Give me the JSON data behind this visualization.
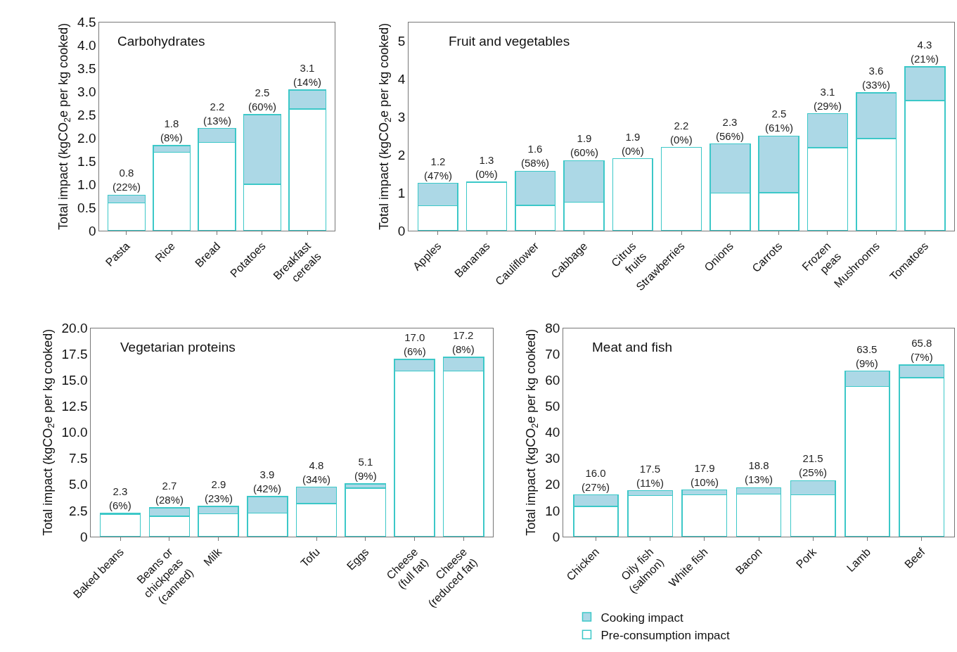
{
  "chart_data": [
    {
      "type": "bar",
      "title": "Carbohydrates",
      "ylabel": "Total impact (kgCO$_{2}$e per kg cooked)",
      "stacked": true,
      "categories": [
        "Pasta",
        "Rice",
        "Bread",
        "Potatoes",
        "Breakfast\ncereals"
      ],
      "series": [
        {
          "color": "#ffffff",
          "values": [
            0.6,
            1.69,
            1.91,
            1.0,
            2.63
          ]
        },
        {
          "color": "#acd8e6",
          "values": [
            0.17,
            0.15,
            0.3,
            1.51,
            0.41
          ]
        }
      ],
      "totals": [
        "0.8\n(22%)",
        "1.8\n(8%)",
        "2.2\n(13%)",
        "2.5\n(60%)",
        "3.1\n(14%)"
      ],
      "ylim": [
        0,
        4.5
      ],
      "yticks": [
        0,
        0.5,
        {
          "value": 1,
          "label": "1.0"
        },
        1.5,
        {
          "value": 2,
          "label": "2.0"
        },
        2.5,
        {
          "value": 3,
          "label": "3.0"
        },
        3.5,
        {
          "value": 4,
          "label": "4.0"
        },
        4.5
      ]
    },
    {
      "type": "bar",
      "title": "Fruit and vegetables",
      "ylabel": "Total impact (kgCO$_{2}$e per kg cooked)",
      "stacked": true,
      "categories": [
        "Apples",
        "Bananas",
        "Cauliflower",
        "Cabbage",
        "Citrus\nfruits",
        "Strawberries",
        "Onions",
        "Carrots",
        "Frozen\npeas",
        "Mushrooms",
        "Tomatoes"
      ],
      "series": [
        {
          "color": "#ffffff",
          "values": [
            0.66,
            1.28,
            0.67,
            0.75,
            1.9,
            2.2,
            0.99,
            1.0,
            2.19,
            2.43,
            3.43
          ]
        },
        {
          "color": "#acd8e6",
          "values": [
            0.59,
            null,
            0.9,
            1.1,
            null,
            null,
            1.3,
            1.5,
            0.9,
            1.21,
            0.9
          ]
        }
      ],
      "totals": [
        "1.2\n(47%)",
        "1.3\n(0%)",
        "1.6\n(58%)",
        "1.9\n(60%)",
        "1.9\n(0%)",
        "2.2\n(0%)",
        "2.3\n(56%)",
        "2.5\n(61%)",
        "3.1\n(29%)",
        "3.6\n(33%)",
        "4.3\n(21%)"
      ],
      "ylim": [
        0,
        5.5
      ],
      "yticks": [
        0,
        1,
        2,
        3,
        4,
        5
      ]
    },
    {
      "type": "bar",
      "title": "Vegetarian proteins",
      "ylabel": "Total impact (kgCO$_{2}$e per kg cooked)",
      "stacked": true,
      "categories": [
        "Baked beans",
        "Beans or\nchickpeas\n(canned)",
        "Milk",
        null,
        "Tofu",
        "Eggs",
        "Cheese\n(full fat)",
        "Cheese\n(reduced fat)"
      ],
      "series": [
        {
          "color": "#ffffff",
          "values": [
            2.15,
            1.95,
            2.2,
            2.25,
            3.15,
            4.65,
            15.9,
            15.9
          ]
        },
        {
          "color": "#acd8e6",
          "values": [
            0.1,
            0.8,
            0.7,
            1.6,
            1.6,
            0.4,
            1.1,
            1.3
          ]
        }
      ],
      "totals": [
        "2.3\n(6%)",
        "2.7\n(28%)",
        "2.9\n(23%)",
        "3.9\n(42%)",
        "4.8\n(34%)",
        "5.1\n(9%)",
        "17.0\n(6%)",
        "17.2\n(8%)"
      ],
      "ylim": [
        0,
        20
      ],
      "yticks": [
        0,
        2.5,
        {
          "value": 5,
          "label": "5.0"
        },
        7.5,
        {
          "value": 10,
          "label": "10.0"
        },
        12.5,
        {
          "value": 15,
          "label": "15.0"
        },
        17.5,
        {
          "value": 20,
          "label": "20.0"
        }
      ]
    },
    {
      "type": "bar",
      "title": "Meat and fish",
      "ylabel": "Total impact (kgCO$_{2}$e per kg cooked)",
      "stacked": true,
      "legend": "bottom",
      "categories": [
        "Chicken",
        "Oily fish\n(salmon)",
        "White fish",
        "Bacon",
        "Pork",
        "Lamb",
        "Beef"
      ],
      "series": [
        {
          "name": "Pre-consumption impact",
          "color": "#ffffff",
          "values": [
            11.6,
            15.7,
            16.1,
            16.3,
            16.1,
            57.6,
            61.0
          ]
        },
        {
          "name": "Cooking impact",
          "color": "#acd8e6",
          "values": [
            4.4,
            1.9,
            1.8,
            2.5,
            5.4,
            5.9,
            4.8
          ]
        }
      ],
      "totals": [
        "16.0\n(27%)",
        "17.5\n(11%)",
        "17.9\n(10%)",
        "18.8\n(13%)",
        "21.5\n(25%)",
        "63.5\n(9%)",
        "65.8\n(7%)"
      ],
      "ylim": [
        0,
        80
      ],
      "yticks": [
        0,
        10,
        20,
        30,
        40,
        50,
        60,
        70,
        80
      ]
    }
  ]
}
